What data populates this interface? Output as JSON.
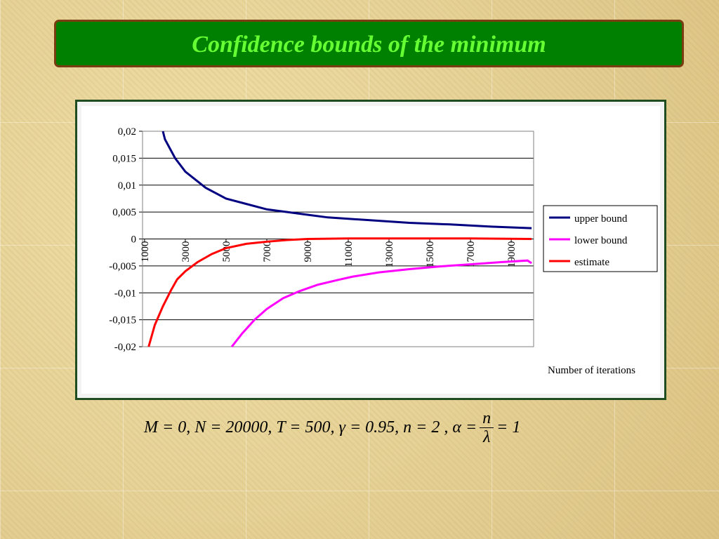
{
  "chart_data": {
    "type": "line",
    "title": "Confidence bounds of the minimum",
    "x_label": "Number of iterations",
    "xlim": [
      900,
      20100
    ],
    "xticks": [
      1000,
      3000,
      5000,
      7000,
      9000,
      11000,
      13000,
      15000,
      17000,
      19000
    ],
    "ylim": [
      -0.02,
      0.02
    ],
    "yticks": [
      {
        "value": -0.02,
        "label": "-0,02"
      },
      {
        "value": -0.015,
        "label": "-0,015"
      },
      {
        "value": -0.01,
        "label": "-0,01"
      },
      {
        "value": -0.005,
        "label": "-0,005"
      },
      0,
      {
        "value": 0.005,
        "label": "0,005"
      },
      {
        "value": 0.01,
        "label": "0,01"
      },
      {
        "value": 0.015,
        "label": "0,015"
      },
      {
        "value": 0.02,
        "label": "0,02"
      }
    ],
    "grid": true,
    "legend": "right",
    "series": [
      {
        "name": "upper bound",
        "color": "#000080",
        "x": [
          1900,
          2000,
          2500,
          3000,
          3500,
          4000,
          5000,
          6000,
          7000,
          8000,
          9000,
          10000,
          12000,
          14000,
          16000,
          18000,
          20000
        ],
        "values": [
          0.02,
          0.0185,
          0.015,
          0.0125,
          0.011,
          0.0095,
          0.0075,
          0.0065,
          0.0055,
          0.005,
          0.0045,
          0.004,
          0.0035,
          0.003,
          0.0027,
          0.0023,
          0.002
        ]
      },
      {
        "name": "lower bound",
        "color": "#ff00ff",
        "x": [
          5280,
          5800,
          6400,
          7000,
          7800,
          8600,
          9500,
          10500,
          11200,
          12500,
          14000,
          15500,
          17000,
          18500,
          19800,
          20000
        ],
        "values": [
          -0.02,
          -0.0175,
          -0.015,
          -0.013,
          -0.011,
          -0.0097,
          -0.0085,
          -0.0076,
          -0.007,
          -0.0062,
          -0.0056,
          -0.0051,
          -0.0047,
          -0.0043,
          -0.004,
          -0.0045
        ]
      },
      {
        "name": "estimate",
        "color": "#ff0000",
        "x": [
          1200,
          1500,
          1900,
          2300,
          2600,
          3000,
          3600,
          4300,
          5000,
          6000,
          7000,
          8000,
          9000,
          11000,
          14000,
          17000,
          20000
        ],
        "values": [
          -0.02,
          -0.016,
          -0.0125,
          -0.0095,
          -0.0075,
          -0.006,
          -0.0043,
          -0.0028,
          -0.0017,
          -0.0009,
          -0.0005,
          -0.0002,
          0,
          0.0001,
          0.0001,
          0.0001,
          0
        ]
      }
    ]
  },
  "caption": {
    "text": "M = 0, N = 20000, T = 500, γ = 0.95, n = 2 , α =",
    "numerator": "n",
    "denominator": "λ",
    "tail": "= 1"
  }
}
